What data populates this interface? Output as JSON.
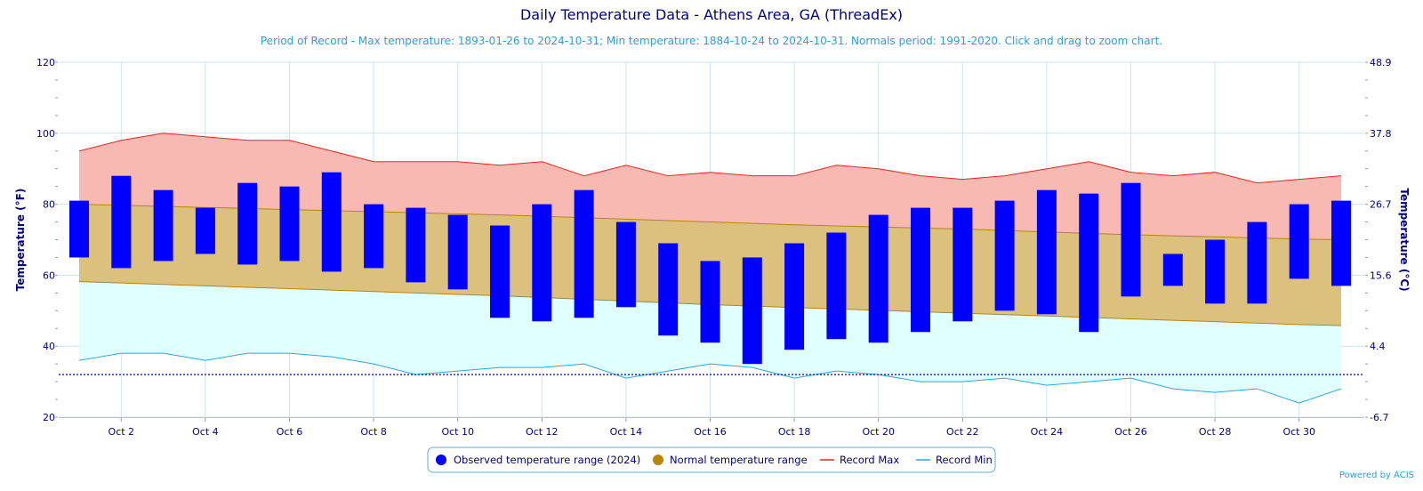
{
  "chart_data": {
    "type": "bar",
    "title": "Daily Temperature Data - Athens Area, GA (ThreadEx)",
    "subtitle": "Period of Record - Max temperature: 1893-01-26 to 2024-10-31; Min temperature: 1884-10-24 to 2024-10-31. Normals period: 1991-2020. Click and drag to zoom chart.",
    "ylabel": "Temperature (°F)",
    "ylabel_right": "Temperature (°C)",
    "ylim": [
      20,
      120
    ],
    "yticks": [
      "20",
      "40",
      "60",
      "80",
      "100",
      "120"
    ],
    "yticks_right": [
      "-6.7",
      "4.4",
      "15.6",
      "26.7",
      "37.8",
      "48.9"
    ],
    "x": [
      1,
      2,
      3,
      4,
      5,
      6,
      7,
      8,
      9,
      10,
      11,
      12,
      13,
      14,
      15,
      16,
      17,
      18,
      19,
      20,
      21,
      22,
      23,
      24,
      25,
      26,
      27,
      28,
      29,
      30,
      31
    ],
    "xtick_labels": [
      "Oct 2",
      "Oct 4",
      "Oct 6",
      "Oct 8",
      "Oct 10",
      "Oct 12",
      "Oct 14",
      "Oct 16",
      "Oct 18",
      "Oct 20",
      "Oct 22",
      "Oct 24",
      "Oct 26",
      "Oct 28",
      "Oct 30"
    ],
    "observed_min": [
      65,
      62,
      64,
      66,
      63,
      64,
      61,
      62,
      58,
      56,
      48,
      47,
      48,
      51,
      43,
      41,
      35,
      39,
      42,
      41,
      44,
      47,
      50,
      49,
      44,
      54,
      57,
      52,
      52,
      59,
      57
    ],
    "observed_max": [
      81,
      88,
      84,
      79,
      86,
      85,
      89,
      80,
      79,
      77,
      74,
      80,
      84,
      75,
      69,
      64,
      65,
      69,
      72,
      77,
      79,
      79,
      81,
      84,
      83,
      86,
      66,
      70,
      75,
      80,
      81
    ],
    "normal_max": [
      80,
      79.7,
      79.4,
      79.1,
      78.8,
      78.5,
      78.2,
      77.9,
      77.6,
      77.3,
      77.0,
      76.6,
      76.2,
      75.8,
      75.4,
      75.0,
      74.6,
      74.2,
      73.9,
      73.6,
      73.3,
      73.0,
      72.6,
      72.2,
      71.8,
      71.4,
      71.1,
      70.8,
      70.5,
      70.2,
      70.0
    ],
    "normal_min": [
      58.2,
      57.8,
      57.4,
      57.0,
      56.6,
      56.2,
      55.8,
      55.4,
      55.0,
      54.6,
      54.2,
      53.7,
      53.2,
      52.7,
      52.2,
      51.7,
      51.3,
      50.9,
      50.5,
      50.1,
      49.7,
      49.3,
      48.9,
      48.5,
      48.1,
      47.7,
      47.3,
      46.9,
      46.5,
      46.1,
      45.8
    ],
    "record_max": [
      95,
      98,
      100,
      99,
      98,
      98,
      95,
      92,
      92,
      92,
      91,
      92,
      88,
      91,
      88,
      89,
      88,
      88,
      91,
      90,
      88,
      87,
      88,
      90,
      92,
      89,
      88,
      89,
      86,
      87,
      88
    ],
    "record_min": [
      36,
      38,
      38,
      36,
      38,
      38,
      37,
      35,
      32,
      33,
      34,
      34,
      35,
      31,
      33,
      35,
      34,
      31,
      33,
      32,
      30,
      30,
      31,
      29,
      30,
      31,
      28,
      27,
      28,
      24,
      28
    ],
    "freezing_line": 32,
    "legend": [
      {
        "label": "Observed temperature range (2024)",
        "color": "#0000ff",
        "marker": "circle"
      },
      {
        "label": "Normal temperature range",
        "color": "#b8860b",
        "marker": "circle"
      },
      {
        "label": "Record Max",
        "color": "#e8281e",
        "marker": "line"
      },
      {
        "label": "Record Min",
        "color": "#29a8e0",
        "marker": "line"
      }
    ],
    "legend_placement": "bottom-center",
    "grid": true,
    "colors": {
      "observed": "#0000ff",
      "record_max_line": "#e8281e",
      "record_max_fill": "#f9b9b3",
      "normal_fill": "#dcc07d",
      "normal_line": "#b8860b",
      "record_min_fill": "#e0ffff",
      "record_min_line": "#29a8e0",
      "freezing": "#0000cc",
      "grid": "#c9e4f2"
    }
  },
  "credits": "Powered by ACIS"
}
